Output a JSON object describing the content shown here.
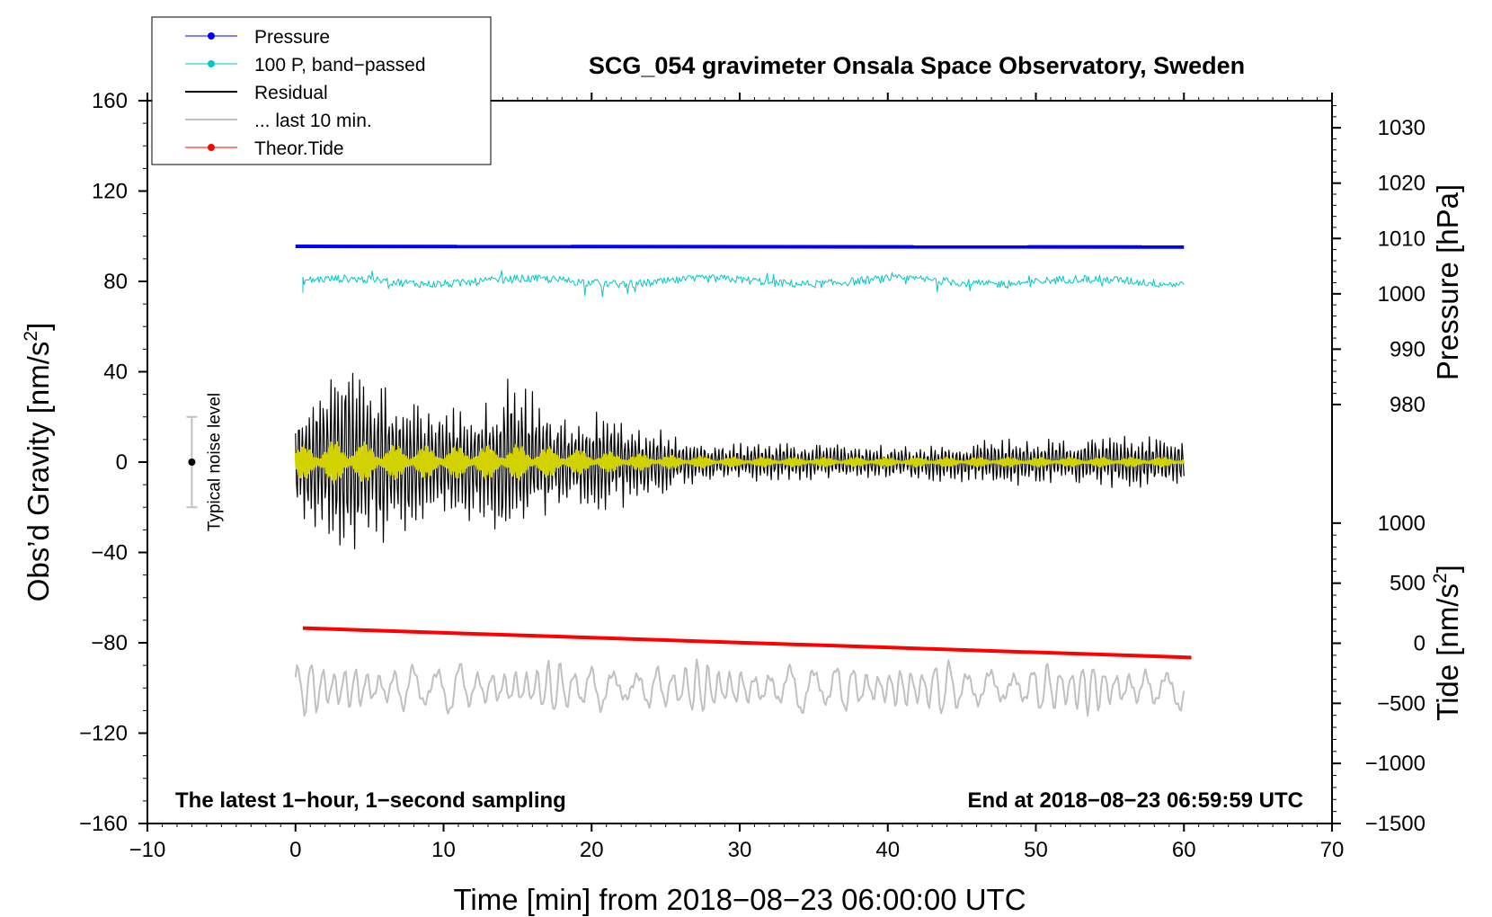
{
  "chart_data": {
    "type": "line",
    "title": "SCG_054 gravimeter Onsala Space Observatory, Sweden",
    "xlabel": "Time [min] from 2018−08−23 06:00:00 UTC",
    "ylabel": "Obs’d Gravity [nm/s²]",
    "ylabel_main": "Obs’d Gravity [nm/s",
    "ylabel_sup": "2",
    "ylabel_end": "]",
    "xlim": [
      -10,
      70
    ],
    "ylim": [
      -160,
      160
    ],
    "xticks": [
      -10,
      0,
      10,
      20,
      30,
      40,
      50,
      60,
      70
    ],
    "xtick_labels": [
      "−10",
      "0",
      "10",
      "20",
      "30",
      "40",
      "50",
      "60",
      "70"
    ],
    "yticks": [
      160,
      120,
      80,
      40,
      0,
      -40,
      -80,
      -120,
      -160
    ],
    "ytick_labels": [
      "160",
      "120",
      "80",
      "40",
      "0",
      "−40",
      "−80",
      "−120",
      "−160"
    ],
    "right_axes": [
      {
        "label": "Pressure [hPa]",
        "tick_values": [
          1030,
          1020,
          1010,
          1000,
          990,
          980
        ],
        "tick_labels": [
          "1030",
          "1020",
          "1010",
          "1000",
          "990",
          "980"
        ],
        "left_axis_equivalents": [
          148,
          123.5,
          99,
          74.5,
          50,
          25.5
        ]
      },
      {
        "label": "Tide [nm/s²]",
        "label_main": "Tide [nm/s",
        "label_sup": "2",
        "label_end": "]",
        "tick_values": [
          1000,
          500,
          0,
          -500,
          -1000,
          -1500
        ],
        "tick_labels": [
          "1000",
          "500",
          "0",
          "−500",
          "−1000",
          "−1500"
        ],
        "left_axis_equivalents": [
          -27,
          -53.6,
          -80.2,
          -106.8,
          -133.4,
          -160
        ]
      }
    ],
    "legend": [
      {
        "name": "Pressure",
        "color": "#0000ff",
        "marker": true
      },
      {
        "name": "100 P, band−passed",
        "color": "#00c8c8",
        "marker": true
      },
      {
        "name": "Residual",
        "color": "#000000",
        "marker": false
      },
      {
        "name": "... last 10 min.",
        "color": "#c0c0c0",
        "marker": false
      },
      {
        "name": "Theor.Tide",
        "color": "#ff0000",
        "marker": true
      }
    ],
    "legend_position": "top-left",
    "series": [
      {
        "name": "Pressure",
        "color": "#0000ff",
        "x": [
          0,
          60
        ],
        "values": [
          95.5,
          95.2
        ]
      },
      {
        "name": "100 P, band−passed",
        "color": "#00c8c8",
        "x_range": [
          0.5,
          60
        ],
        "center": 80,
        "amplitude": 3
      },
      {
        "name": "Residual",
        "color": "#000000",
        "x_range": [
          0,
          60
        ],
        "center": 0,
        "envelope_x": [
          0,
          2,
          4,
          6,
          8,
          10,
          13,
          15,
          17,
          19,
          21,
          23,
          25,
          28,
          32,
          36,
          40,
          44,
          48,
          52,
          56,
          60
        ],
        "envelope_amp": [
          20,
          42,
          40,
          34,
          26,
          24,
          28,
          42,
          22,
          18,
          22,
          16,
          14,
          8,
          8,
          8,
          7,
          8,
          10,
          10,
          11,
          10
        ]
      },
      {
        "name": "Residual (filtered)",
        "color": "#d2d200",
        "x_range": [
          0,
          60
        ],
        "center": 0,
        "envelope_x": [
          0,
          3,
          6,
          10,
          15,
          20,
          25,
          30,
          40,
          50,
          60
        ],
        "envelope_amp": [
          7,
          10,
          8,
          7,
          8,
          5,
          3,
          2,
          2,
          2,
          2
        ]
      },
      {
        "name": "... last 10 min.",
        "color": "#c0c0c0",
        "x_range": [
          0,
          60
        ],
        "center": -100,
        "amplitude": 8
      },
      {
        "name": "Theor.Tide",
        "color": "#ff0000",
        "x": [
          0.5,
          60.5
        ],
        "values": [
          -73.5,
          -86.5
        ]
      }
    ],
    "noise_bar": {
      "label": "Typical noise level",
      "x": -7,
      "center": 0,
      "half_range": 20
    },
    "annotations": {
      "bottom_left": "The latest 1−hour, 1−second sampling",
      "bottom_right": "End at 2018−08−23 06:59:59 UTC"
    }
  },
  "colors": {
    "pressure": "#0000ff",
    "bandpassed": "#00c8c8",
    "residual": "#000000",
    "filtered": "#d2d200",
    "last10": "#c0c0c0",
    "tide": "#ff0000",
    "noise": "#c0c0c0"
  }
}
